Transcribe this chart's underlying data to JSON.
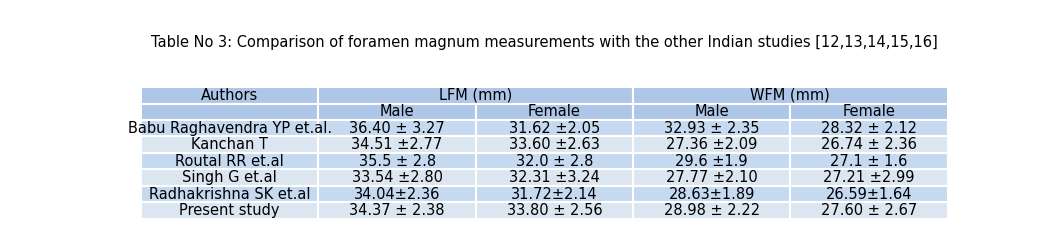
{
  "title": "Table No 3: Comparison of foramen magnum measurements with the other Indian studies ",
  "title_superscript": "[12,13,14,15,16]",
  "col_headers_level1": [
    "Authors",
    "LFM (mm)",
    "WFM (mm)"
  ],
  "col_headers_level2": [
    "",
    "Male",
    "Female",
    "Male",
    "Female"
  ],
  "rows": [
    [
      "Babu Raghavendra YP et.al.",
      "36.40 ± 3.27",
      "31.62 ±2.05",
      "32.93 ± 2.35",
      "28.32 ± 2.12"
    ],
    [
      "Kanchan T",
      "34.51 ±2.77",
      "33.60 ±2.63",
      "27.36 ±2.09",
      "26.74 ± 2.36"
    ],
    [
      "Routal RR et.al",
      "35.5 ± 2.8",
      "32.0 ± 2.8",
      "29.6 ±1.9",
      "27.1 ± 1.6"
    ],
    [
      "Singh G et.al",
      "33.54 ±2.80",
      "32.31 ±3.24",
      "27.77 ±2.10",
      "27.21 ±2.99"
    ],
    [
      "Radhakrishna SK et.al",
      "34.04±2.36",
      "31.72±2.14",
      "28.63±1.89",
      "26.59±1.64"
    ],
    [
      "Present study",
      "34.37 ± 2.38",
      "33.80 ± 2.56",
      "28.98 ± 2.22",
      "27.60 ± 2.67"
    ]
  ],
  "bg_color_header": "#aec6e8",
  "bg_color_row_odd": "#c5d9f1",
  "bg_color_row_even": "#dce6f1",
  "text_color": "#000000",
  "border_color": "#ffffff",
  "fig_bg_color": "#ffffff",
  "title_fontsize": 10.5,
  "header_fontsize": 10.5,
  "cell_fontsize": 10.5
}
